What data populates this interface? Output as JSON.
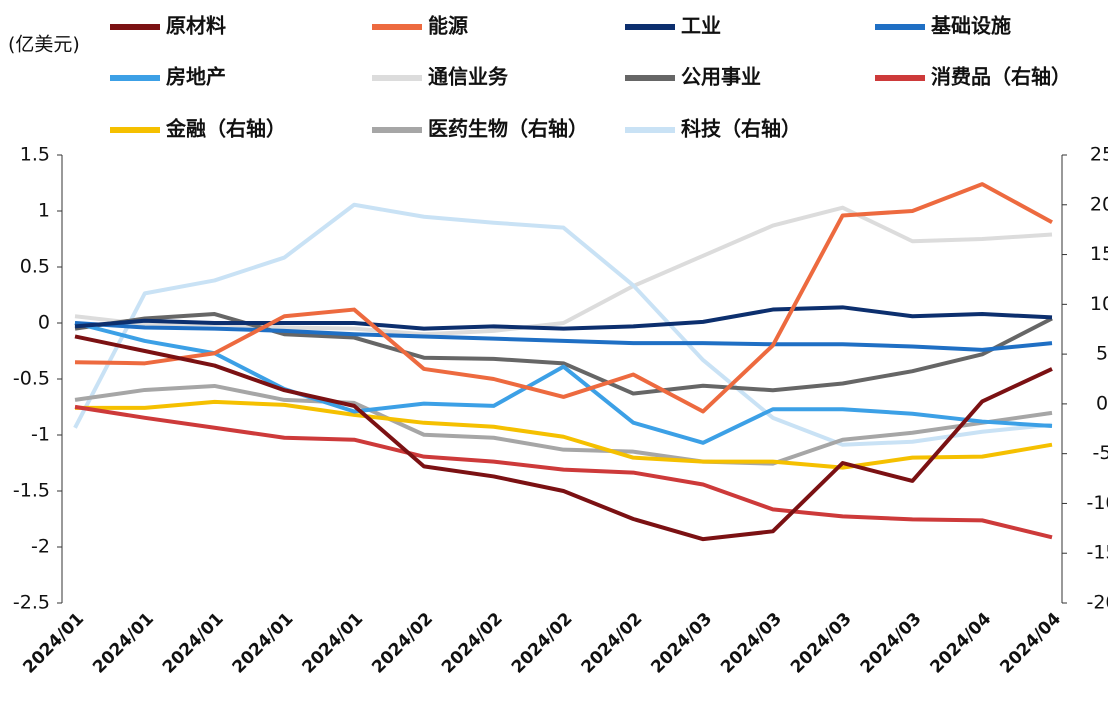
{
  "chart_data": {
    "type": "line",
    "y_label": "(亿美元)",
    "categories": [
      "2024/01",
      "2024/01",
      "2024/01",
      "2024/01",
      "2024/01",
      "2024/02",
      "2024/02",
      "2024/02",
      "2024/02",
      "2024/03",
      "2024/03",
      "2024/03",
      "2024/03",
      "2024/04",
      "2024/04"
    ],
    "ylim": [
      -2.5,
      1.5
    ],
    "yticks": [
      1.5,
      1,
      0.5,
      0,
      -0.5,
      -1,
      -1.5,
      -2,
      -2.5
    ],
    "y2lim": [
      -20,
      25
    ],
    "y2ticks": [
      25,
      20,
      15,
      10,
      5,
      0,
      -5,
      -10,
      -15,
      -20
    ],
    "grid": false,
    "series": [
      {
        "name": "原材料",
        "color": "#7b1113",
        "values": [
          -0.12,
          -0.25,
          -0.38,
          -0.6,
          -0.74,
          -1.28,
          -1.37,
          -1.5,
          -1.75,
          -1.93,
          -1.86,
          -1.25,
          -1.41,
          -0.7,
          -0.41
        ]
      },
      {
        "name": "能源",
        "color": "#ed6a3f",
        "values": [
          -0.35,
          -0.36,
          -0.27,
          0.06,
          0.12,
          -0.41,
          -0.5,
          -0.66,
          -0.46,
          -0.79,
          -0.2,
          0.96,
          1.0,
          1.24,
          0.9
        ]
      },
      {
        "name": "工业",
        "color": "#0c2f6e",
        "values": [
          -0.03,
          0.02,
          0,
          0,
          0,
          -0.05,
          -0.03,
          -0.05,
          -0.03,
          0.01,
          0.12,
          0.14,
          0.06,
          0.08,
          0.05
        ]
      },
      {
        "name": "基础设施",
        "color": "#1f6fc4",
        "values": [
          0,
          -0.04,
          -0.05,
          -0.07,
          -0.1,
          -0.12,
          -0.14,
          -0.16,
          -0.18,
          -0.18,
          -0.19,
          -0.19,
          -0.21,
          -0.24,
          -0.18
        ]
      },
      {
        "name": "房地产",
        "color": "#3ca0e6",
        "values": [
          0,
          -0.16,
          -0.27,
          -0.59,
          -0.79,
          -0.72,
          -0.74,
          -0.39,
          -0.89,
          -1.07,
          -0.77,
          -0.77,
          -0.81,
          -0.88,
          -0.92
        ]
      },
      {
        "name": "通信业务",
        "color": "#dcdcdc",
        "values": [
          0.06,
          -0.01,
          -0.01,
          -0.04,
          -0.05,
          -0.1,
          -0.07,
          0,
          0.33,
          0.6,
          0.87,
          1.03,
          0.73,
          0.75,
          0.79
        ]
      },
      {
        "name": "公用事业",
        "color": "#666666",
        "values": [
          -0.05,
          0.04,
          0.08,
          -0.1,
          -0.13,
          -0.31,
          -0.32,
          -0.36,
          -0.63,
          -0.56,
          -0.6,
          -0.54,
          -0.43,
          -0.28,
          0.04
        ]
      },
      {
        "name": "消费品（右轴）",
        "color": "#cd3a3a",
        "axis": "y2",
        "values": [
          -0.3,
          -1.4,
          -2.4,
          -3.4,
          -3.6,
          -5.3,
          -5.8,
          -6.6,
          -6.9,
          -8.1,
          -10.6,
          -11.3,
          -11.6,
          -11.7,
          -13.4
        ]
      },
      {
        "name": "金融（右轴）",
        "color": "#f5c000",
        "axis": "y2",
        "values": [
          -0.4,
          -0.4,
          0.2,
          -0.1,
          -1.1,
          -1.9,
          -2.3,
          -3.3,
          -5.4,
          -5.8,
          -5.8,
          -6.4,
          -5.4,
          -5.3,
          -4.1
        ]
      },
      {
        "name": "医药生物（右轴）",
        "color": "#a6a6a6",
        "axis": "y2",
        "values": [
          0.4,
          1.4,
          1.8,
          0.4,
          0.1,
          -3.1,
          -3.4,
          -4.6,
          -4.8,
          -5.8,
          -6.0,
          -3.6,
          -2.9,
          -1.9,
          -0.9
        ]
      },
      {
        "name": "科技（右轴）",
        "color": "#c9e2f5",
        "axis": "y2",
        "values": [
          -2.4,
          11.1,
          12.4,
          14.7,
          20.0,
          18.8,
          18.2,
          17.7,
          11.9,
          4.4,
          -1.4,
          -4.1,
          -3.8,
          -2.8,
          -2.1
        ]
      }
    ]
  }
}
